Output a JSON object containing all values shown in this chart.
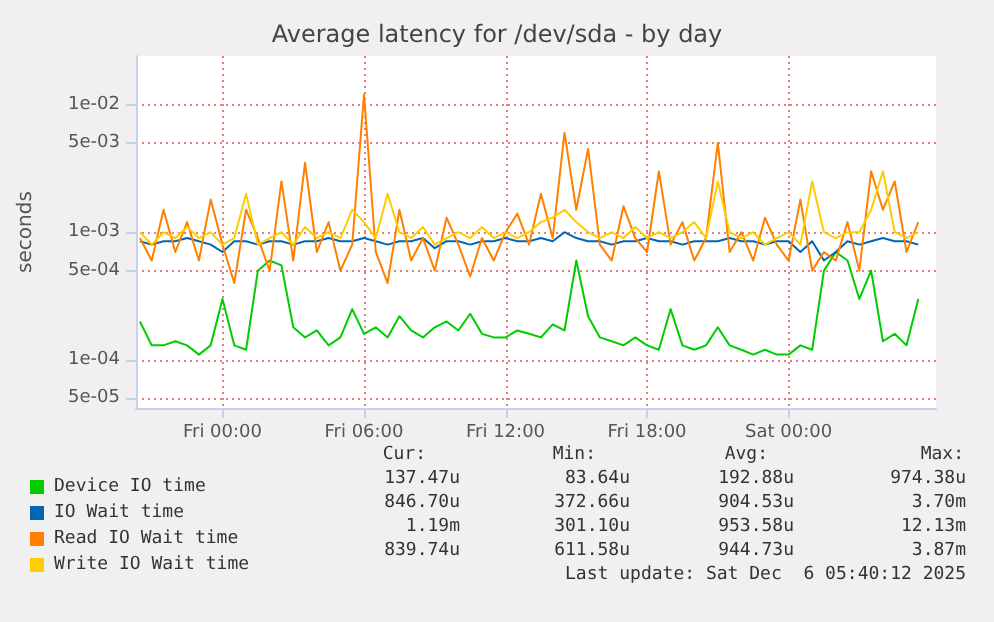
{
  "chart_data": {
    "type": "line",
    "title": "Average latency for /dev/sda - by day",
    "ylabel": "seconds",
    "x": [
      "2025-12-04T20:30",
      "2025-12-04T21:00",
      "2025-12-04T21:30",
      "2025-12-04T22:00",
      "2025-12-04T22:30",
      "2025-12-04T23:00",
      "2025-12-04T23:30",
      "2025-12-05T00:00",
      "2025-12-05T00:30",
      "2025-12-05T01:00",
      "2025-12-05T01:30",
      "2025-12-05T02:00",
      "2025-12-05T02:30",
      "2025-12-05T03:00",
      "2025-12-05T03:30",
      "2025-12-05T04:00",
      "2025-12-05T04:30",
      "2025-12-05T05:00",
      "2025-12-05T05:30",
      "2025-12-05T06:00",
      "2025-12-05T06:30",
      "2025-12-05T07:00",
      "2025-12-05T07:30",
      "2025-12-05T08:00",
      "2025-12-05T08:30",
      "2025-12-05T09:00",
      "2025-12-05T09:30",
      "2025-12-05T10:00",
      "2025-12-05T10:30",
      "2025-12-05T11:00",
      "2025-12-05T11:30",
      "2025-12-05T12:00",
      "2025-12-05T12:30",
      "2025-12-05T13:00",
      "2025-12-05T13:30",
      "2025-12-05T14:00",
      "2025-12-05T14:30",
      "2025-12-05T15:00",
      "2025-12-05T15:30",
      "2025-12-05T16:00",
      "2025-12-05T16:30",
      "2025-12-05T17:00",
      "2025-12-05T17:30",
      "2025-12-05T18:00",
      "2025-12-05T18:30",
      "2025-12-05T19:00",
      "2025-12-05T19:30",
      "2025-12-05T20:00",
      "2025-12-05T20:30",
      "2025-12-05T21:00",
      "2025-12-05T21:30",
      "2025-12-05T22:00",
      "2025-12-05T22:30",
      "2025-12-05T23:00",
      "2025-12-05T23:30",
      "2025-12-06T00:00",
      "2025-12-06T00:30",
      "2025-12-06T01:00",
      "2025-12-06T01:30",
      "2025-12-06T02:00",
      "2025-12-06T02:30",
      "2025-12-06T03:00",
      "2025-12-06T03:30",
      "2025-12-06T04:00",
      "2025-12-06T04:30",
      "2025-12-06T05:00",
      "2025-12-06T05:30"
    ],
    "series": [
      {
        "name": "Device IO time",
        "color": "#00cc00",
        "values": [
          0.0002,
          0.00013,
          0.00013,
          0.00014,
          0.00013,
          0.00011,
          0.00013,
          0.0003,
          0.00013,
          0.00012,
          0.0005,
          0.0006,
          0.00055,
          0.00018,
          0.00015,
          0.00017,
          0.00013,
          0.00015,
          0.00025,
          0.00016,
          0.00018,
          0.00015,
          0.00022,
          0.00017,
          0.00015,
          0.00018,
          0.0002,
          0.00017,
          0.00023,
          0.00016,
          0.00015,
          0.00015,
          0.00017,
          0.00016,
          0.00015,
          0.00019,
          0.00017,
          0.0006,
          0.00022,
          0.00015,
          0.00014,
          0.00013,
          0.00015,
          0.00013,
          0.00012,
          0.00025,
          0.00013,
          0.00012,
          0.00013,
          0.00018,
          0.00013,
          0.00012,
          0.00011,
          0.00012,
          0.00011,
          0.00011,
          0.00013,
          0.00012,
          0.0005,
          0.0007,
          0.0006,
          0.0003,
          0.0005,
          0.00014,
          0.00016,
          0.00013,
          0.0003
        ]
      },
      {
        "name": "IO Wait time",
        "color": "#0066b3",
        "values": [
          0.00085,
          0.0008,
          0.00085,
          0.00085,
          0.0009,
          0.00085,
          0.0008,
          0.0007,
          0.00085,
          0.00085,
          0.0008,
          0.00085,
          0.00085,
          0.0008,
          0.00085,
          0.00085,
          0.0009,
          0.00085,
          0.00085,
          0.0009,
          0.00085,
          0.0008,
          0.00085,
          0.00085,
          0.0009,
          0.00075,
          0.00085,
          0.00085,
          0.0008,
          0.00085,
          0.00085,
          0.0009,
          0.00085,
          0.00085,
          0.0009,
          0.00085,
          0.001,
          0.0009,
          0.00085,
          0.00085,
          0.0008,
          0.00085,
          0.00085,
          0.0009,
          0.00085,
          0.00085,
          0.0008,
          0.00085,
          0.00085,
          0.00085,
          0.0009,
          0.00085,
          0.00085,
          0.0008,
          0.00085,
          0.00085,
          0.0007,
          0.00085,
          0.0006,
          0.0007,
          0.00085,
          0.0008,
          0.00085,
          0.0009,
          0.00085,
          0.00085,
          0.0008
        ]
      },
      {
        "name": "Read IO Wait time",
        "color": "#ff8000",
        "values": [
          0.0009,
          0.0006,
          0.0015,
          0.0007,
          0.0012,
          0.0006,
          0.0018,
          0.0008,
          0.0004,
          0.0015,
          0.0009,
          0.0005,
          0.0025,
          0.0006,
          0.0035,
          0.0007,
          0.0012,
          0.0005,
          0.0008,
          0.012,
          0.0007,
          0.0004,
          0.0015,
          0.0006,
          0.0009,
          0.0005,
          0.0013,
          0.0008,
          0.00045,
          0.0009,
          0.0006,
          0.001,
          0.0014,
          0.0008,
          0.002,
          0.0009,
          0.006,
          0.0015,
          0.0045,
          0.0008,
          0.0006,
          0.0016,
          0.0009,
          0.0007,
          0.003,
          0.0008,
          0.0012,
          0.0006,
          0.0009,
          0.005,
          0.0007,
          0.001,
          0.0006,
          0.0013,
          0.0008,
          0.0006,
          0.0018,
          0.0005,
          0.0007,
          0.0006,
          0.0012,
          0.0005,
          0.003,
          0.0015,
          0.0025,
          0.0007,
          0.0012
        ]
      },
      {
        "name": "Write IO Wait time",
        "color": "#ffcc00",
        "values": [
          0.001,
          0.0008,
          0.001,
          0.0009,
          0.0011,
          0.0009,
          0.001,
          0.0008,
          0.0009,
          0.002,
          0.0008,
          0.0009,
          0.001,
          0.0008,
          0.0011,
          0.0009,
          0.001,
          0.0009,
          0.0015,
          0.0012,
          0.0009,
          0.002,
          0.001,
          0.0009,
          0.0011,
          0.0008,
          0.0009,
          0.001,
          0.0009,
          0.0011,
          0.0009,
          0.001,
          0.0009,
          0.001,
          0.0012,
          0.0013,
          0.0015,
          0.0012,
          0.001,
          0.0009,
          0.001,
          0.0009,
          0.0011,
          0.0009,
          0.001,
          0.0009,
          0.001,
          0.0012,
          0.0009,
          0.0025,
          0.001,
          0.0009,
          0.001,
          0.0008,
          0.0009,
          0.001,
          0.0008,
          0.0025,
          0.001,
          0.0009,
          0.001,
          0.001,
          0.0015,
          0.003,
          0.001,
          0.0009,
          0.001
        ]
      }
    ],
    "log": "y",
    "ylim": [
      4.2e-05,
      0.024
    ],
    "yticks": [
      {
        "value": 0.01,
        "label": "1e-02"
      },
      {
        "value": 0.005,
        "label": "5e-03"
      },
      {
        "value": 0.001,
        "label": "1e-03"
      },
      {
        "value": 0.0005,
        "label": "5e-04"
      },
      {
        "value": 0.0001,
        "label": "1e-04"
      },
      {
        "value": 5e-05,
        "label": "5e-05"
      }
    ],
    "xlim": [
      "2025-12-04T20:20",
      "2025-12-06T06:15"
    ],
    "xticks": [
      {
        "value": "2025-12-05T00:00",
        "label": "Fri 00:00"
      },
      {
        "value": "2025-12-05T06:00",
        "label": "Fri 06:00"
      },
      {
        "value": "2025-12-05T12:00",
        "label": "Fri 12:00"
      },
      {
        "value": "2025-12-05T18:00",
        "label": "Fri 18:00"
      },
      {
        "value": "2025-12-06T00:00",
        "label": "Sat 00:00"
      }
    ],
    "grid": true,
    "legend": "bottom left",
    "marker": "none",
    "line_style": "solid",
    "annotations": [
      "Cur:",
      "Min:",
      "Avg:",
      "Max:",
      "137.47u",
      "83.64u",
      "192.88u",
      "974.38u",
      "846.70u",
      "372.66u",
      "904.53u",
      "3.70m",
      "1.19m",
      "301.10u",
      "953.58u",
      "12.13m",
      "839.74u",
      "611.58u",
      "944.73u",
      "3.87m",
      "Last update: Sat Dec  6 05:40:12 2025"
    ]
  }
}
